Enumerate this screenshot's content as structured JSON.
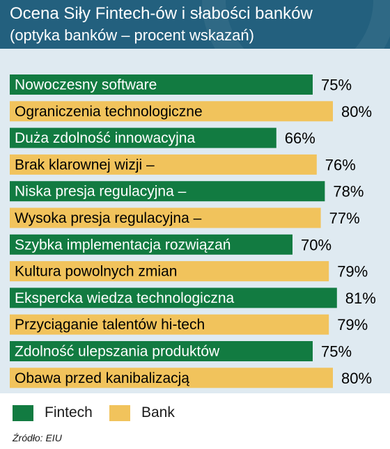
{
  "header": {
    "title": "Ocena Siły Fintech-ów i słabości banków",
    "subtitle": "(optyka banków – procent wskazań)"
  },
  "colors": {
    "header_bg": "#23607e",
    "panel_bg": "#dfeaf1",
    "fintech": "#127b41",
    "bank": "#f1c35c"
  },
  "chart_data": {
    "type": "bar",
    "orientation": "horizontal",
    "title": "Ocena Siły Fintech-ów i słabości banków",
    "subtitle": "(optyka banków – procent wskazań)",
    "unit": "%",
    "legend_placement": "bottom-left",
    "grid": false,
    "categories": [
      "Nowoczesny software",
      "Ograniczenia technologiczne",
      "Duża zdolność innowacyjna",
      "Brak klarownej wizji –",
      "Niska presja regulacyjna –",
      "Wysoka presja regulacyjna –",
      "Szybka implementacja rozwiązań",
      "Kultura powolnych zmian",
      "Ekspercka wiedza technologiczna",
      "Przyciąganie talentów hi-tech",
      "Zdolność ulepszania produktów",
      "Obawa przed kanibalizacją"
    ],
    "values": [
      75,
      80,
      66,
      76,
      78,
      77,
      70,
      79,
      81,
      79,
      75,
      80
    ],
    "value_labels": [
      "75%",
      "80%",
      "66%",
      "76%",
      "78%",
      "77%",
      "70%",
      "79%",
      "81%",
      "79%",
      "75%",
      "80%"
    ],
    "groups": [
      "Fintech",
      "Bank",
      "Fintech",
      "Bank",
      "Fintech",
      "Bank",
      "Fintech",
      "Bank",
      "Fintech",
      "Bank",
      "Fintech",
      "Bank"
    ],
    "series": [
      {
        "name": "Fintech",
        "color": "#127b41"
      },
      {
        "name": "Bank",
        "color": "#f1c35c"
      }
    ]
  },
  "legend": [
    {
      "label": "Fintech",
      "color": "#127b41"
    },
    {
      "label": "Bank",
      "color": "#f1c35c"
    }
  ],
  "source": "Źródło: EIU"
}
